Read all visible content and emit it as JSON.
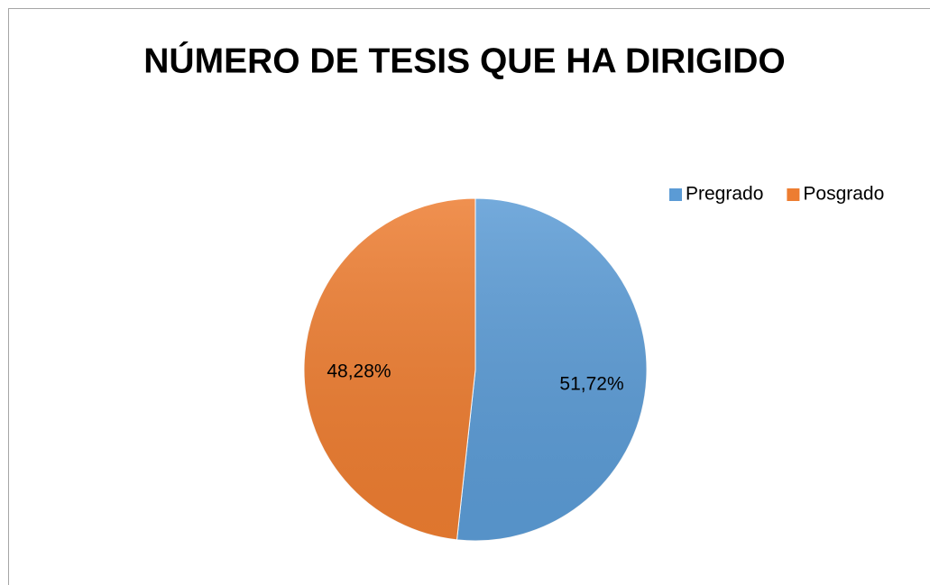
{
  "chart_data": {
    "type": "pie",
    "title": "NÚMERO DE TESIS QUE HA DIRIGIDO",
    "categories": [
      "Pregrado",
      "Posgrado"
    ],
    "values": [
      51.72,
      48.28
    ],
    "value_labels": [
      "51,72%",
      "48,28%"
    ],
    "colors": [
      "#5b9bd5",
      "#ed7d31"
    ],
    "legend": "top-right"
  }
}
